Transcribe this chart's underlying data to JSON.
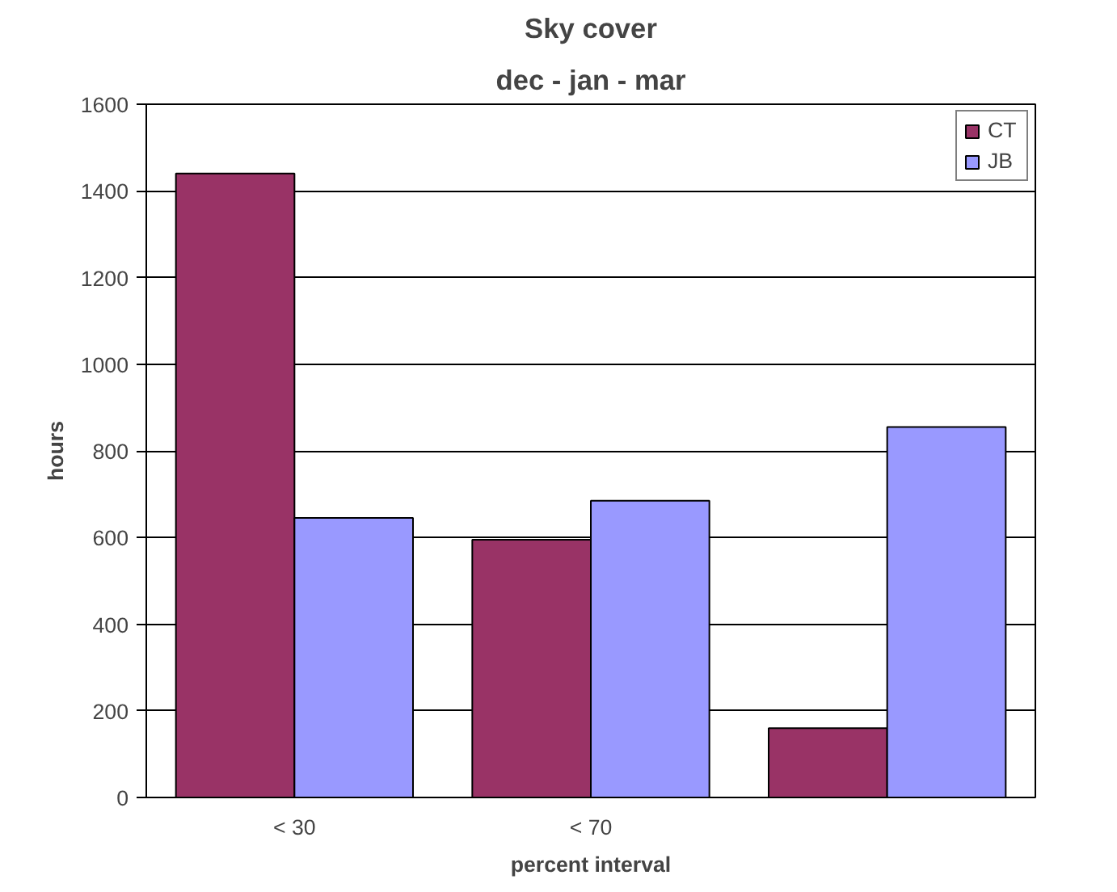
{
  "chart_data": {
    "type": "bar",
    "title": "Sky cover",
    "subtitle": "dec - jan - mar",
    "xlabel": "percent interval",
    "ylabel": "hours",
    "categories": [
      "< 30",
      "< 70",
      null
    ],
    "series": [
      {
        "name": "CT",
        "color": "#993366",
        "values": [
          1440,
          595,
          160
        ]
      },
      {
        "name": "JB",
        "color": "#9999ff",
        "values": [
          645,
          685,
          855
        ]
      }
    ],
    "ylim": [
      0,
      1600
    ],
    "yticks": [
      0,
      200,
      400,
      600,
      800,
      1000,
      1200,
      1400,
      1600
    ],
    "grid": "y",
    "legend": "top right"
  }
}
